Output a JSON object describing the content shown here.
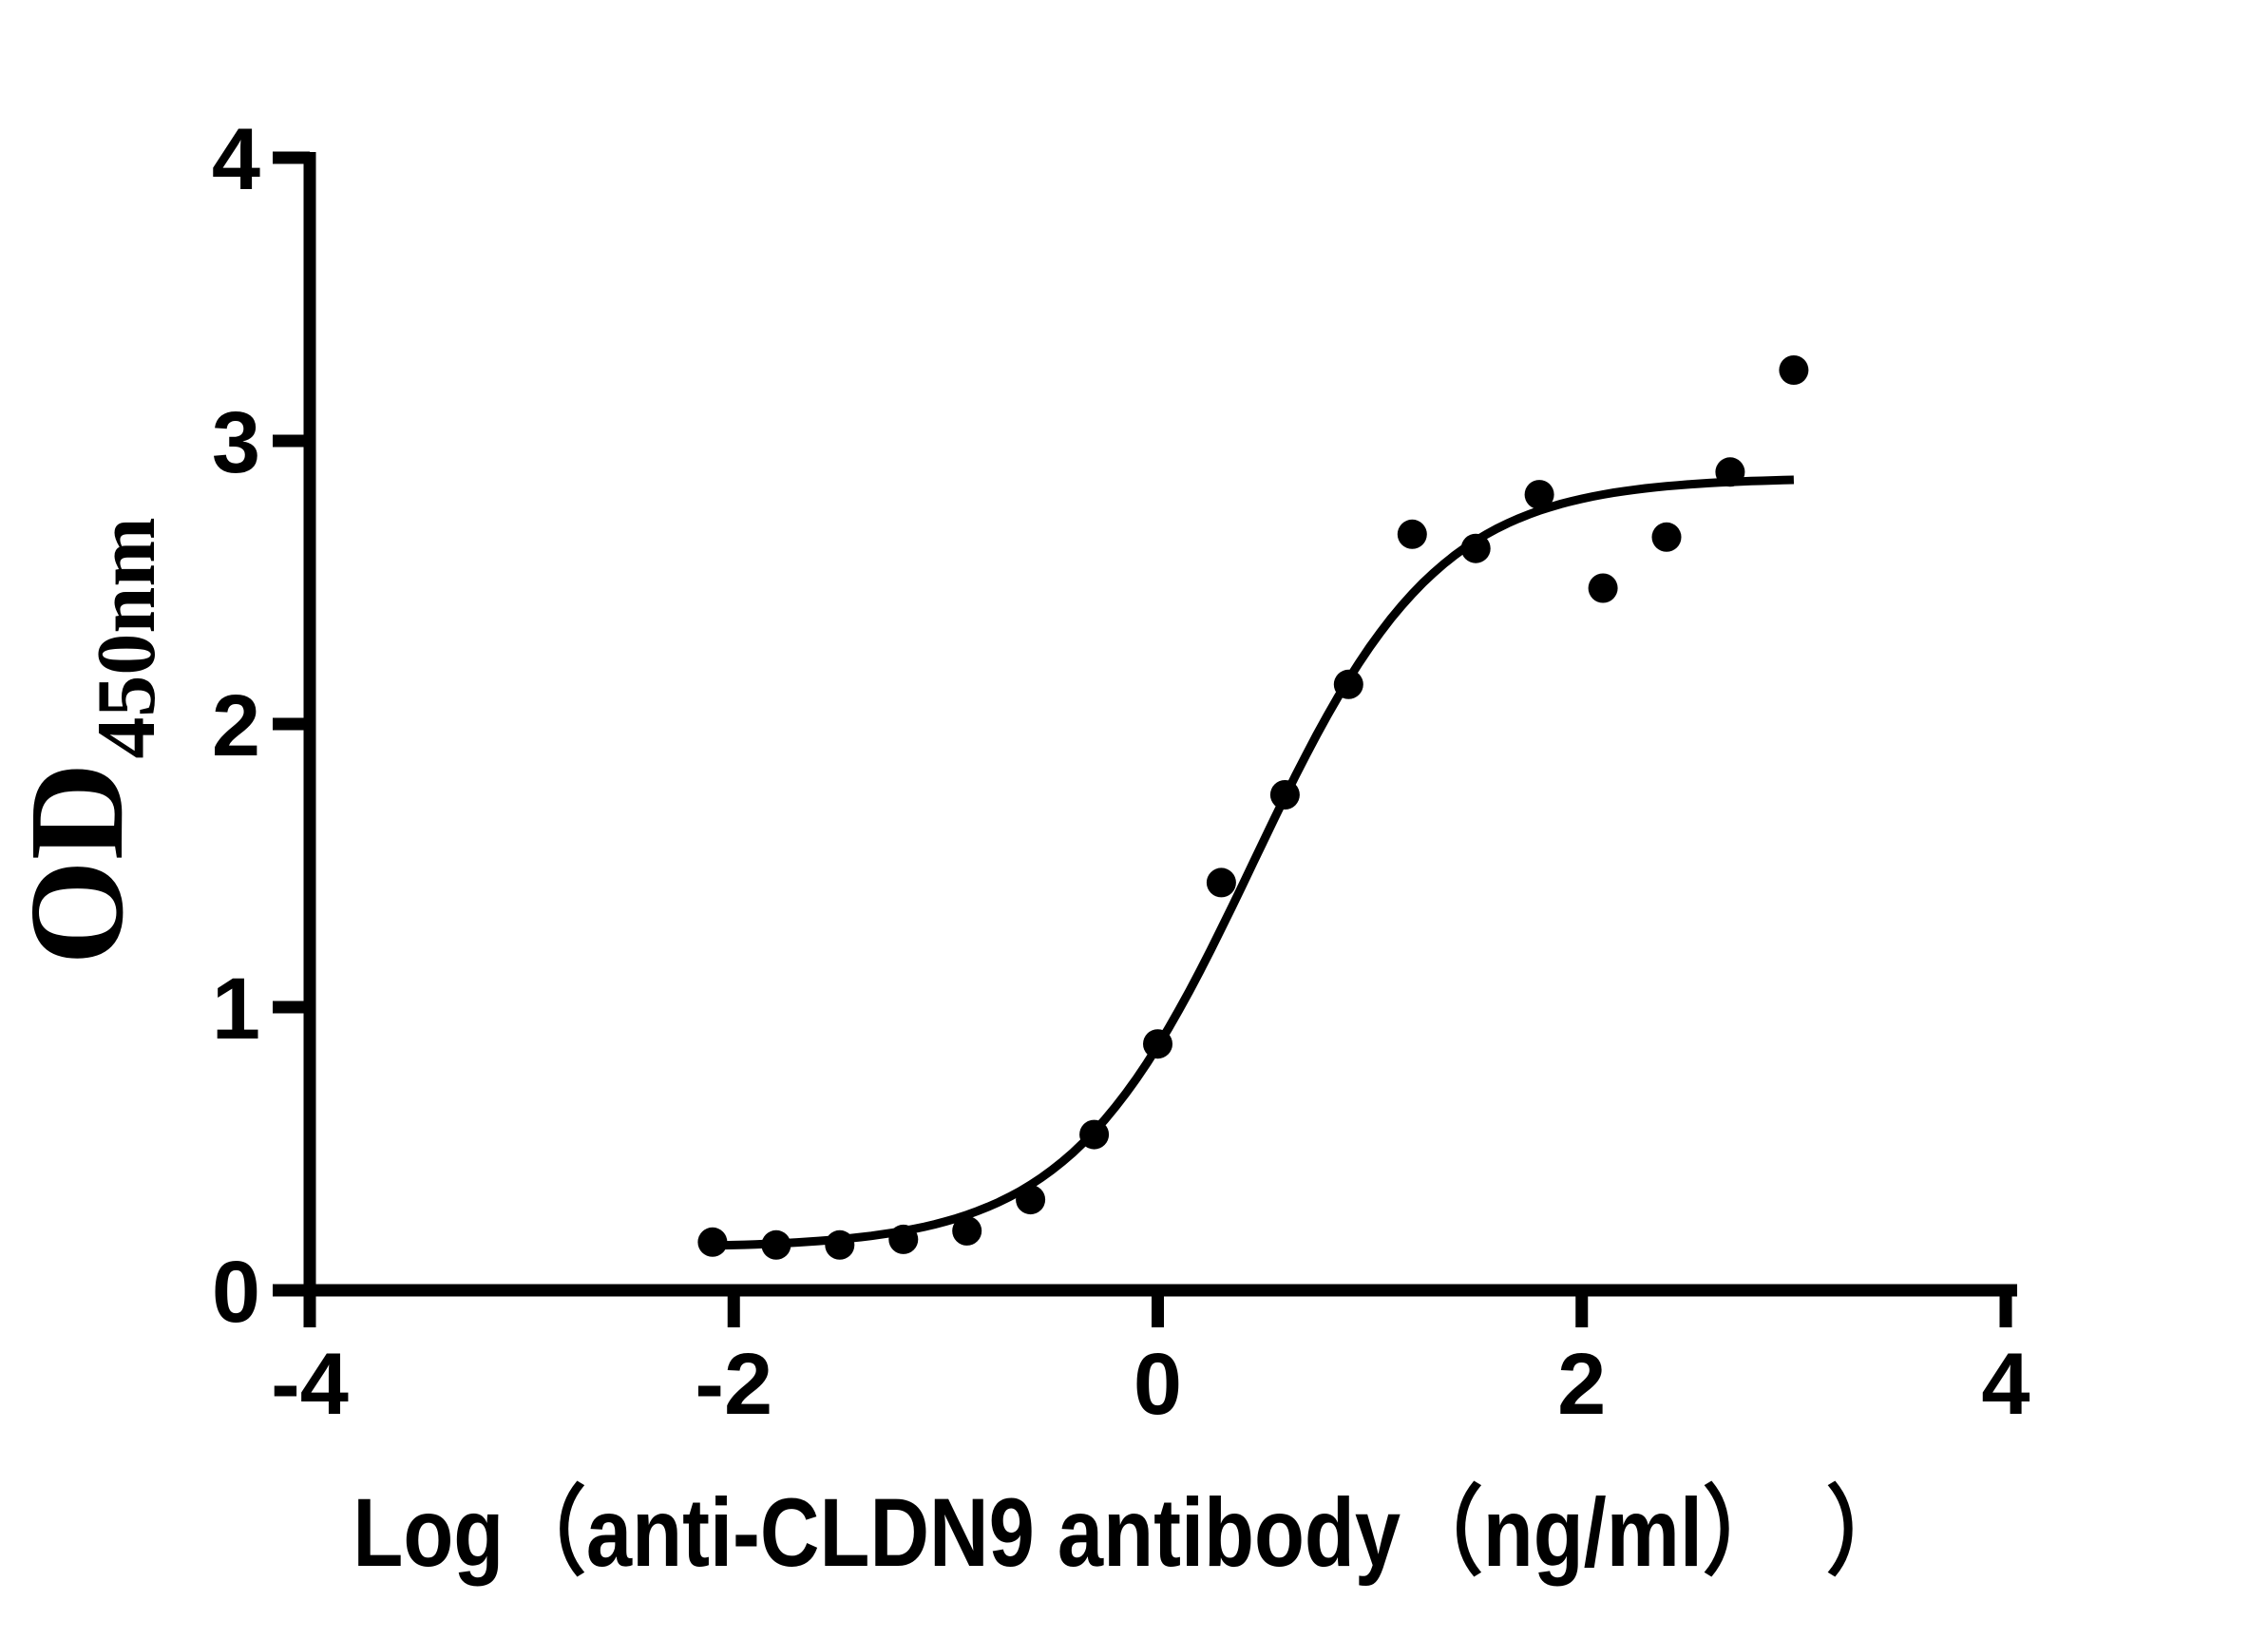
{
  "chart_data": {
    "type": "scatter",
    "title": "",
    "xlabel": "Log（anti-CLDN9 antibody（ng/ml）　）",
    "ylabel_main": "OD",
    "ylabel_sub": "450nm",
    "xlim": [
      -4,
      4
    ],
    "ylim": [
      0,
      4
    ],
    "x_ticks": [
      "-4",
      "-2",
      "0",
      "2",
      "4"
    ],
    "x_tick_values": [
      -4,
      -2,
      0,
      2,
      4
    ],
    "y_ticks": [
      "0",
      "1",
      "2",
      "3",
      "4"
    ],
    "y_tick_values": [
      0,
      1,
      2,
      3,
      4
    ],
    "grid": false,
    "legend": false,
    "marker_color": "#000000",
    "curve_color": "#000000",
    "background_color": "#ffffff",
    "points": [
      {
        "log_conc": -2.1,
        "od": 0.17
      },
      {
        "log_conc": -1.8,
        "od": 0.16
      },
      {
        "log_conc": -1.5,
        "od": 0.16
      },
      {
        "log_conc": -1.2,
        "od": 0.18
      },
      {
        "log_conc": -0.9,
        "od": 0.21
      },
      {
        "log_conc": -0.6,
        "od": 0.32
      },
      {
        "log_conc": -0.3,
        "od": 0.55
      },
      {
        "log_conc": 0.0,
        "od": 0.87
      },
      {
        "log_conc": 0.3,
        "od": 1.44
      },
      {
        "log_conc": 0.6,
        "od": 1.75
      },
      {
        "log_conc": 0.9,
        "od": 2.14
      },
      {
        "log_conc": 1.2,
        "od": 2.67
      },
      {
        "log_conc": 1.5,
        "od": 2.62
      },
      {
        "log_conc": 1.8,
        "od": 2.81
      },
      {
        "log_conc": 2.1,
        "od": 2.48
      },
      {
        "log_conc": 2.4,
        "od": 2.66
      },
      {
        "log_conc": 2.7,
        "od": 2.89
      },
      {
        "log_conc": 3.0,
        "od": 3.25
      }
    ],
    "fit_curve": {
      "model": "4PL-logistic",
      "bottom": 0.15,
      "top": 2.87,
      "logEC50": 0.45,
      "hill": 1.0,
      "x_range": [
        -2.1,
        3.0
      ]
    }
  }
}
